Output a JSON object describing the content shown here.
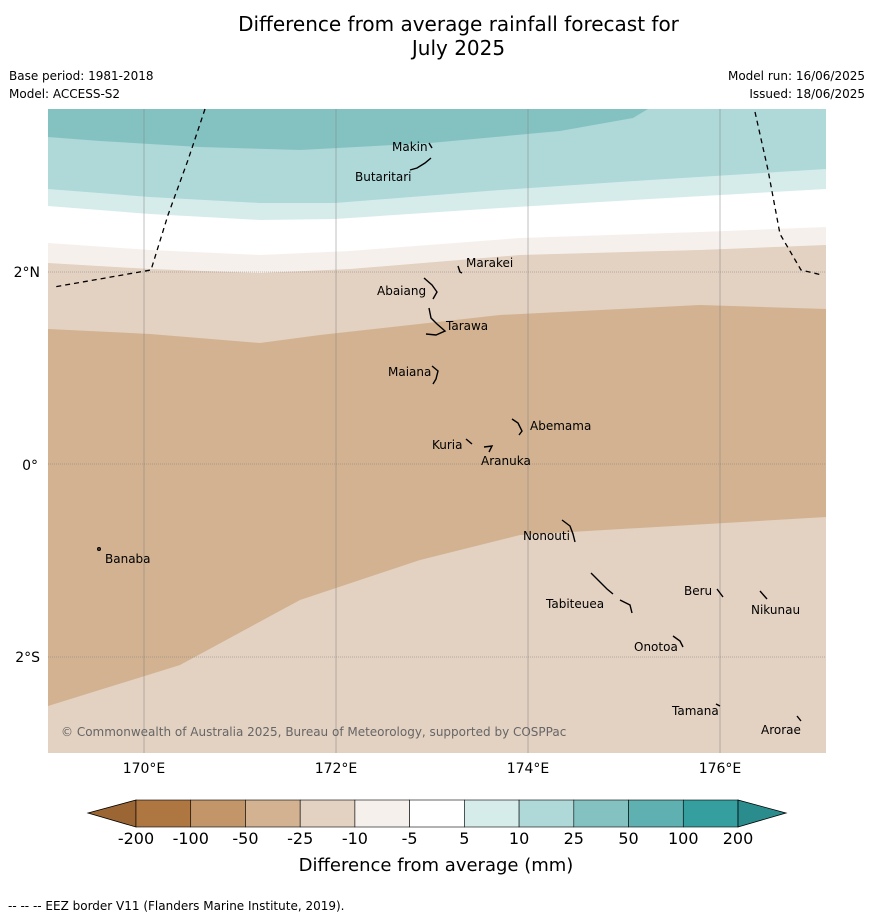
{
  "title_line1": "Difference from average rainfall forecast for",
  "title_line2": "July 2025",
  "meta": {
    "base_period": "Base period: 1981-2018",
    "model": "Model: ACCESS-S2",
    "model_run": "Model run: 16/06/2025",
    "issued": "Issued: 18/06/2025"
  },
  "axes": {
    "lat_labels": [
      "2°N",
      "0°",
      "2°S"
    ],
    "lon_labels": [
      "170°E",
      "172°E",
      "174°E",
      "176°E"
    ]
  },
  "places": [
    "Makin",
    "Butaritari",
    "Marakei",
    "Abaiang",
    "Tarawa",
    "Maiana",
    "Abemama",
    "Kuria",
    "Aranuka",
    "Nonouti",
    "Banaba",
    "Tabiteuea",
    "Beru",
    "Nikunau",
    "Onotoa",
    "Tamana",
    "Arorae"
  ],
  "copyright": "© Commonwealth of Australia 2025, Bureau of Meteorology, supported by COSPPac",
  "colorbar": {
    "ticks": [
      "-200",
      "-100",
      "-50",
      "-25",
      "-10",
      "-5",
      "5",
      "10",
      "25",
      "50",
      "100",
      "200"
    ],
    "colors": [
      "#ae7741",
      "#c29669",
      "#d2b291",
      "#e3d1c1",
      "#f6f0ec",
      "#ffffff",
      "#d6eceb",
      "#afd8d8",
      "#84c2c2",
      "#5fb0b0",
      "#359f9f"
    ],
    "under_color": "#9b6633",
    "over_color": "#2a8c8c",
    "label": "Difference from average (mm)"
  },
  "footer": "--  --  -- EEZ border V11 (Flanders Marine Institute, 2019)."
}
